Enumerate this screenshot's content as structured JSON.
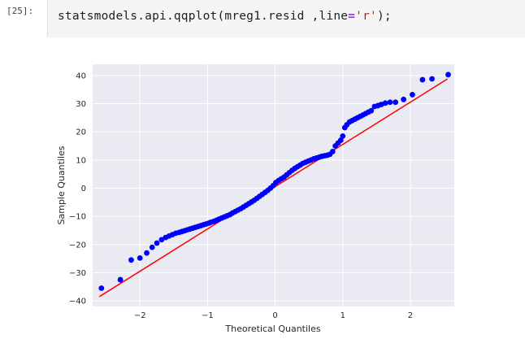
{
  "cell": {
    "prompt": "[25]:",
    "code": {
      "part1": "statsmodels.api.qqplot(mreg1.resid ,line",
      "op": "=",
      "str": "'r'",
      "part2": ");"
    }
  },
  "colors": {
    "background": "#eaeaf2",
    "grid": "#ffffff",
    "points": "#0000ff",
    "line": "#ff0000",
    "code_bg": "#f5f5f5"
  },
  "chart_data": {
    "type": "scatter",
    "title": "",
    "xlabel": "Theoretical Quantiles",
    "ylabel": "Sample Quantiles",
    "xlim": [
      -2.7,
      2.65
    ],
    "ylim": [
      -42,
      44
    ],
    "xticks": [
      -2,
      -1,
      0,
      1,
      2
    ],
    "yticks": [
      -40,
      -30,
      -20,
      -10,
      0,
      10,
      20,
      30,
      40
    ],
    "grid": true,
    "reference_line": {
      "name": "r",
      "x": [
        -2.6,
        2.55
      ],
      "y": [
        -38.5,
        38.8
      ]
    },
    "series": [
      {
        "x": [
          -2.57,
          -2.29,
          -2.13,
          -2.0,
          -1.9,
          -1.82,
          -1.75,
          -1.68,
          -1.62,
          -1.57,
          -1.52,
          -1.47,
          -1.42,
          -1.38,
          -1.34,
          -1.3,
          -1.26,
          -1.22,
          -1.18,
          -1.14,
          -1.1,
          -1.06,
          -1.02,
          -0.98,
          -0.95,
          -0.91,
          -0.87,
          -0.83,
          -0.79,
          -0.75,
          -0.71,
          -0.67,
          -0.63,
          -0.59,
          -0.55,
          -0.51,
          -0.47,
          -0.43,
          -0.39,
          -0.35,
          -0.31,
          -0.27,
          -0.23,
          -0.19,
          -0.15,
          -0.11,
          -0.07,
          -0.03,
          0.01,
          0.05,
          0.09,
          0.13,
          0.17,
          0.21,
          0.25,
          0.29,
          0.33,
          0.37,
          0.41,
          0.45,
          0.49,
          0.53,
          0.57,
          0.61,
          0.65,
          0.69,
          0.73,
          0.77,
          0.81,
          0.85,
          0.89,
          0.93,
          0.97,
          1.0,
          1.03,
          1.06,
          1.1,
          1.14,
          1.18,
          1.22,
          1.26,
          1.3,
          1.34,
          1.38,
          1.42,
          1.47,
          1.52,
          1.57,
          1.63,
          1.7,
          1.78,
          1.9,
          2.03,
          2.18,
          2.32,
          2.56
        ],
        "y": [
          -35.5,
          -32.5,
          -25.5,
          -24.8,
          -23,
          -21,
          -19.5,
          -18.3,
          -17.5,
          -17,
          -16.5,
          -16,
          -15.7,
          -15.4,
          -15.1,
          -14.8,
          -14.5,
          -14.2,
          -13.9,
          -13.6,
          -13.3,
          -13,
          -12.7,
          -12.4,
          -12.1,
          -11.8,
          -11.4,
          -11,
          -10.6,
          -10.2,
          -9.8,
          -9.4,
          -8.8,
          -8.3,
          -7.8,
          -7.3,
          -6.7,
          -6.1,
          -5.5,
          -4.9,
          -4.3,
          -3.6,
          -2.9,
          -2.2,
          -1.5,
          -0.8,
          0,
          0.9,
          2,
          2.7,
          3.3,
          3.9,
          4.7,
          5.5,
          6.3,
          7,
          7.6,
          8.2,
          8.8,
          9.2,
          9.6,
          10,
          10.4,
          10.7,
          11,
          11.3,
          11.5,
          11.7,
          12,
          13,
          15,
          16,
          17,
          18.5,
          21.5,
          22.5,
          23.5,
          24,
          24.5,
          25,
          25.5,
          26,
          26.5,
          27,
          27.5,
          29,
          29.3,
          29.7,
          30.2,
          30.5,
          30.5,
          31.5,
          33.2,
          38.5,
          38.8,
          40.3
        ]
      }
    ]
  }
}
